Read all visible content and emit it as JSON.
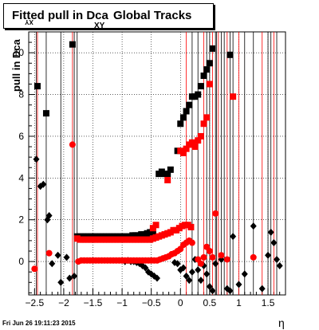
{
  "title": {
    "main": "Fitted pull in Dca",
    "sub": "XY",
    "rest": "Global Tracks"
  },
  "footer": "Fri Jun 26 19:11:23 2015",
  "chart_data": {
    "type": "scatter",
    "title": "Fitted pull in Dca XY Global Tracks",
    "xlabel": "η",
    "ylabel": "pull in Dca",
    "ylabel_sub": "XY",
    "xlim": [
      -2.6,
      1.8
    ],
    "ylim": [
      -1.6,
      11
    ],
    "grid": true,
    "x_ticks": [
      -2.5,
      -2,
      -1.5,
      -1,
      -0.5,
      0,
      0.5,
      1,
      1.5
    ],
    "x_tick_labels": [
      "−2.5",
      "−2",
      "−1.5",
      "−1",
      "−0.5",
      "0",
      "0.5",
      "1",
      "1.5"
    ],
    "y_ticks": [
      0,
      2,
      4,
      6,
      8,
      10
    ],
    "y_tick_labels": [
      "0",
      "2",
      "4",
      "6",
      "8",
      "10"
    ],
    "colors": {
      "black": "#000000",
      "red": "#ff0000"
    },
    "series": [
      {
        "marker": "square",
        "color": "#000000",
        "points": [
          [
            -2.45,
            8.4
          ],
          [
            -2.3,
            7.1
          ],
          [
            -1.85,
            10.4
          ],
          [
            -1.77,
            1.2
          ],
          [
            -1.72,
            1.2
          ],
          [
            -1.67,
            1.2
          ],
          [
            -1.62,
            1.2
          ],
          [
            -1.57,
            1.2
          ],
          [
            -1.52,
            1.2
          ],
          [
            -1.47,
            1.2
          ],
          [
            -1.42,
            1.2
          ],
          [
            -1.37,
            1.2
          ],
          [
            -1.32,
            1.2
          ],
          [
            -1.27,
            1.2
          ],
          [
            -1.22,
            1.2
          ],
          [
            -1.17,
            1.2
          ],
          [
            -1.12,
            1.2
          ],
          [
            -1.07,
            1.2
          ],
          [
            -1.02,
            1.2
          ],
          [
            -0.97,
            1.2
          ],
          [
            -0.92,
            1.2
          ],
          [
            -0.87,
            1.2
          ],
          [
            -0.82,
            1.25
          ],
          [
            -0.77,
            1.25
          ],
          [
            -0.72,
            1.25
          ],
          [
            -0.67,
            1.3
          ],
          [
            -0.62,
            1.3
          ],
          [
            -0.57,
            1.35
          ],
          [
            -0.52,
            1.4
          ],
          [
            -0.47,
            1.45
          ],
          [
            -0.37,
            4.2
          ],
          [
            -0.32,
            4.3
          ],
          [
            -0.27,
            4.2
          ],
          [
            -0.22,
            4.2
          ],
          [
            -0.17,
            4.4
          ],
          [
            -0.05,
            5.3
          ],
          [
            0.0,
            6.6
          ],
          [
            0.05,
            6.9
          ],
          [
            0.1,
            7.2
          ],
          [
            0.15,
            7.5
          ],
          [
            0.2,
            7.9
          ],
          [
            0.25,
            7.9
          ],
          [
            0.3,
            8.0
          ],
          [
            0.35,
            8.4
          ],
          [
            0.4,
            8.9
          ],
          [
            0.45,
            9.2
          ],
          [
            0.5,
            9.5
          ],
          [
            0.55,
            10.2
          ],
          [
            0.85,
            9.9
          ]
        ]
      },
      {
        "marker": "diamond",
        "color": "#000000",
        "points": [
          [
            -2.47,
            4.9
          ],
          [
            -2.4,
            3.6
          ],
          [
            -2.35,
            3.7
          ],
          [
            -2.28,
            2.0
          ],
          [
            -2.25,
            2.2
          ],
          [
            -2.2,
            -0.1
          ],
          [
            -2.1,
            0.3
          ],
          [
            -2.05,
            -1.0
          ],
          [
            -1.95,
            0.2
          ],
          [
            -1.9,
            -0.8
          ],
          [
            -1.82,
            -0.7
          ],
          [
            -0.95,
            0.0
          ],
          [
            -0.9,
            0.05
          ],
          [
            -0.85,
            0.0
          ],
          [
            -0.8,
            0.0
          ],
          [
            -0.75,
            -0.05
          ],
          [
            -0.7,
            -0.1
          ],
          [
            -0.65,
            -0.2
          ],
          [
            -0.6,
            -0.3
          ],
          [
            -0.55,
            -0.5
          ],
          [
            -0.5,
            -0.6
          ],
          [
            -0.45,
            -0.7
          ],
          [
            -0.4,
            -0.8
          ],
          [
            -0.1,
            -0.05
          ],
          [
            -0.05,
            -0.1
          ],
          [
            0.0,
            -0.4
          ],
          [
            0.05,
            -0.3
          ],
          [
            0.1,
            -0.7
          ],
          [
            0.15,
            -0.9
          ],
          [
            0.2,
            -0.5
          ],
          [
            0.25,
            0.1
          ],
          [
            0.3,
            -0.4
          ],
          [
            0.35,
            -0.9
          ],
          [
            0.4,
            -0.2
          ],
          [
            0.45,
            -0.6
          ],
          [
            0.5,
            -1.2
          ],
          [
            0.55,
            -1.4
          ],
          [
            0.6,
            -0.1
          ],
          [
            0.7,
            0.1
          ],
          [
            0.8,
            -1.3
          ],
          [
            0.85,
            -1.4
          ],
          [
            0.9,
            1.2
          ],
          [
            1.0,
            -1.1
          ],
          [
            1.1,
            -0.6
          ],
          [
            1.25,
            1.7
          ],
          [
            1.4,
            -1.3
          ],
          [
            1.5,
            0.3
          ],
          [
            1.55,
            1.4
          ],
          [
            1.6,
            0.9
          ],
          [
            1.65,
            0.1
          ],
          [
            1.7,
            -0.2
          ]
        ]
      },
      {
        "marker": "square",
        "color": "#ff0000",
        "points": [
          [
            -1.77,
            1.1
          ],
          [
            -1.72,
            1.05
          ],
          [
            -1.67,
            1.05
          ],
          [
            -1.62,
            1.05
          ],
          [
            -1.57,
            1.05
          ],
          [
            -1.52,
            1.05
          ],
          [
            -1.47,
            1.05
          ],
          [
            -1.42,
            1.05
          ],
          [
            -1.37,
            1.05
          ],
          [
            -1.32,
            1.05
          ],
          [
            -1.27,
            1.05
          ],
          [
            -1.22,
            1.05
          ],
          [
            -1.17,
            1.05
          ],
          [
            -1.12,
            1.05
          ],
          [
            -1.07,
            1.05
          ],
          [
            -1.02,
            1.05
          ],
          [
            -0.97,
            1.05
          ],
          [
            -0.92,
            1.05
          ],
          [
            -0.87,
            1.05
          ],
          [
            -0.82,
            1.05
          ],
          [
            -0.77,
            1.05
          ],
          [
            -0.72,
            1.05
          ],
          [
            -0.67,
            1.05
          ],
          [
            -0.62,
            1.05
          ],
          [
            -0.57,
            1.05
          ],
          [
            -0.52,
            1.05
          ],
          [
            -0.47,
            1.1
          ],
          [
            -0.42,
            1.15
          ],
          [
            -0.37,
            1.2
          ],
          [
            -0.32,
            1.25
          ],
          [
            -0.27,
            1.3
          ],
          [
            -0.22,
            1.35
          ],
          [
            -0.17,
            1.4
          ],
          [
            -0.12,
            1.5
          ],
          [
            -0.07,
            1.5
          ],
          [
            -0.02,
            1.6
          ],
          [
            0.03,
            1.7
          ],
          [
            0.08,
            1.75
          ],
          [
            0.13,
            1.75
          ],
          [
            0.18,
            1.65
          ],
          [
            -0.47,
            1.6
          ],
          [
            -0.42,
            1.75
          ],
          [
            -0.22,
            3.9
          ],
          [
            0.0,
            5.3
          ],
          [
            0.05,
            5.2
          ],
          [
            0.1,
            5.4
          ],
          [
            0.15,
            5.6
          ],
          [
            0.2,
            5.7
          ],
          [
            0.25,
            5.5
          ],
          [
            0.3,
            5.8
          ],
          [
            0.35,
            6.0
          ],
          [
            0.4,
            6.6
          ],
          [
            0.45,
            6.9
          ],
          [
            0.5,
            8.5
          ],
          [
            0.9,
            7.9
          ]
        ]
      },
      {
        "marker": "circle",
        "color": "#ff0000",
        "points": [
          [
            -2.5,
            -0.35
          ],
          [
            -2.25,
            0.4
          ],
          [
            -1.85,
            5.6
          ],
          [
            -1.75,
            0.0
          ],
          [
            -1.7,
            0.05
          ],
          [
            -1.65,
            0.05
          ],
          [
            -1.6,
            0.05
          ],
          [
            -1.55,
            0.05
          ],
          [
            -1.5,
            0.05
          ],
          [
            -1.45,
            0.05
          ],
          [
            -1.4,
            0.05
          ],
          [
            -1.35,
            0.05
          ],
          [
            -1.3,
            0.05
          ],
          [
            -1.25,
            0.05
          ],
          [
            -1.2,
            0.05
          ],
          [
            -1.15,
            0.05
          ],
          [
            -1.1,
            0.05
          ],
          [
            -1.05,
            0.05
          ],
          [
            -1.0,
            0.05
          ],
          [
            -0.95,
            0.05
          ],
          [
            -0.9,
            0.05
          ],
          [
            -0.85,
            0.05
          ],
          [
            -0.8,
            0.05
          ],
          [
            -0.75,
            0.05
          ],
          [
            -0.7,
            0.05
          ],
          [
            -0.65,
            0.05
          ],
          [
            -0.6,
            0.05
          ],
          [
            -0.55,
            0.05
          ],
          [
            -0.5,
            0.05
          ],
          [
            -0.45,
            0.05
          ],
          [
            -0.4,
            0.05
          ],
          [
            -0.35,
            0.1
          ],
          [
            -0.3,
            0.15
          ],
          [
            -0.25,
            0.2
          ],
          [
            -0.2,
            0.25
          ],
          [
            -0.15,
            0.35
          ],
          [
            -0.1,
            0.4
          ],
          [
            -0.05,
            0.5
          ],
          [
            0.0,
            0.6
          ],
          [
            0.05,
            0.8
          ],
          [
            0.1,
            0.9
          ],
          [
            0.15,
            1.0
          ],
          [
            0.2,
            0.9
          ],
          [
            0.3,
            0.1
          ],
          [
            0.35,
            -0.1
          ],
          [
            0.4,
            0.2
          ],
          [
            0.45,
            0.7
          ],
          [
            0.5,
            0.5
          ],
          [
            0.55,
            0.2
          ],
          [
            0.6,
            2.3
          ],
          [
            0.7,
            0.3
          ],
          [
            0.8,
            0.1
          ],
          [
            1.25,
            0.2
          ]
        ]
      }
    ]
  }
}
